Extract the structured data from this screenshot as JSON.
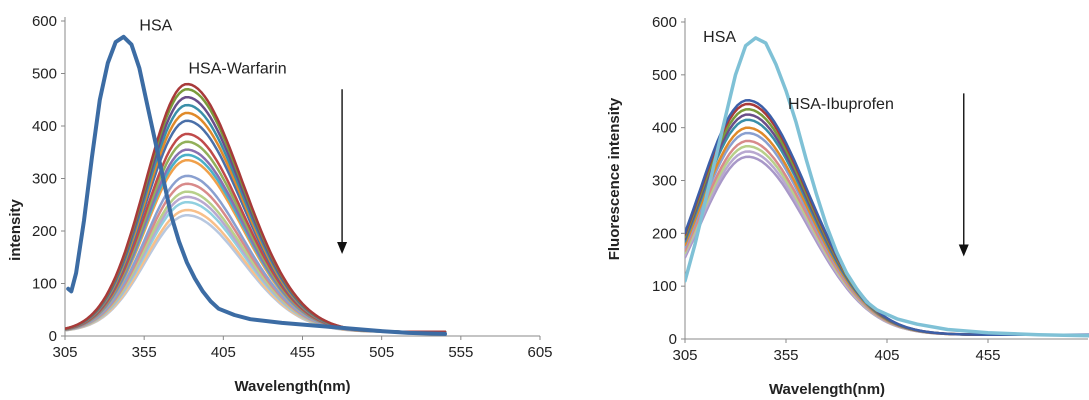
{
  "chart_data": [
    {
      "type": "line",
      "title": "",
      "xlabel": "Wavelength(nm)",
      "ylabel": "intensity",
      "xlim": [
        305,
        605
      ],
      "ylim": [
        0,
        600
      ],
      "x_ticks": [
        "305",
        "355",
        "405",
        "455",
        "505",
        "555",
        "605"
      ],
      "y_ticks": [
        "0",
        "100",
        "200",
        "300",
        "400",
        "500",
        "600"
      ],
      "grid": false,
      "annotations": [
        {
          "text": "HSA",
          "x": 352,
          "y": 582
        },
        {
          "text": "HSA-Warfarin",
          "x": 383,
          "y": 500
        }
      ],
      "arrow": {
        "x": 480,
        "y_from": 470,
        "y_to": 160
      },
      "series": [
        {
          "color": "#3C6CA4",
          "width": 4,
          "values": [
            [
              307,
              90
            ],
            [
              309,
              85
            ],
            [
              312,
              120
            ],
            [
              317,
              220
            ],
            [
              322,
              340
            ],
            [
              327,
              450
            ],
            [
              332,
              520
            ],
            [
              337,
              560
            ],
            [
              342,
              570
            ],
            [
              347,
              555
            ],
            [
              352,
              510
            ],
            [
              357,
              440
            ],
            [
              362,
              370
            ],
            [
              367,
              300
            ],
            [
              372,
              230
            ],
            [
              377,
              180
            ],
            [
              382,
              140
            ],
            [
              387,
              110
            ],
            [
              392,
              85
            ],
            [
              397,
              66
            ],
            [
              402,
              52
            ],
            [
              412,
              40
            ],
            [
              422,
              32
            ],
            [
              442,
              25
            ],
            [
              462,
              20
            ],
            [
              482,
              15
            ],
            [
              502,
              10
            ],
            [
              522,
              6
            ],
            [
              545,
              4
            ]
          ]
        },
        {
          "color": "#A83A3A",
          "peak": 480,
          "width": 2.5
        },
        {
          "color": "#7A9A3A",
          "peak": 470,
          "width": 2.5
        },
        {
          "color": "#6A4E8A",
          "peak": 455,
          "width": 2.5
        },
        {
          "color": "#3A8FA8",
          "peak": 440,
          "width": 2.5
        },
        {
          "color": "#E08A2A",
          "peak": 425,
          "width": 2.5
        },
        {
          "color": "#4A6FA8",
          "peak": 410,
          "width": 2.5
        },
        {
          "color": "#C04A4A",
          "peak": 385,
          "width": 2.5
        },
        {
          "color": "#92B05A",
          "peak": 370,
          "width": 2.5
        },
        {
          "color": "#8A70B0",
          "peak": 355,
          "width": 2.5
        },
        {
          "color": "#4AB0C8",
          "peak": 345,
          "width": 2.5
        },
        {
          "color": "#F0A04A",
          "peak": 335,
          "width": 2.5
        },
        {
          "color": "#8AA0D0",
          "peak": 305,
          "width": 2.5
        },
        {
          "color": "#D88A8A",
          "peak": 290,
          "width": 2.5
        },
        {
          "color": "#B8D08A",
          "peak": 275,
          "width": 2.5
        },
        {
          "color": "#B8A8D0",
          "peak": 265,
          "width": 2.5
        },
        {
          "color": "#90D0E0",
          "peak": 255,
          "width": 2.5
        },
        {
          "color": "#F8C08A",
          "peak": 240,
          "width": 2.5
        },
        {
          "color": "#B8C8E0",
          "peak": 230,
          "width": 2.5
        }
      ]
    },
    {
      "type": "line",
      "title": "",
      "xlabel": "Wavelength(nm)",
      "ylabel": "Fluorescence intensity",
      "xlim": [
        305,
        505
      ],
      "ylim": [
        0,
        600
      ],
      "x_ticks": [
        "305",
        "355",
        "405",
        "455"
      ],
      "y_ticks": [
        "0",
        "100",
        "200",
        "300",
        "400",
        "500",
        "600"
      ],
      "grid": false,
      "annotations": [
        {
          "text": "HSA",
          "x": 314,
          "y": 562
        },
        {
          "text": "HSA-Ibuprofen",
          "x": 356,
          "y": 435
        }
      ],
      "arrow": {
        "x": 443,
        "y_from": 465,
        "y_to": 160
      },
      "series": [
        {
          "color": "#7FC1D6",
          "width": 3.5,
          "values": [
            [
              305,
              110
            ],
            [
              310,
              180
            ],
            [
              315,
              260
            ],
            [
              320,
              340
            ],
            [
              325,
              420
            ],
            [
              330,
              500
            ],
            [
              335,
              555
            ],
            [
              340,
              570
            ],
            [
              345,
              560
            ],
            [
              350,
              520
            ],
            [
              355,
              470
            ],
            [
              360,
              410
            ],
            [
              365,
              340
            ],
            [
              370,
              275
            ],
            [
              375,
              215
            ],
            [
              380,
              165
            ],
            [
              385,
              125
            ],
            [
              390,
              95
            ],
            [
              395,
              70
            ],
            [
              400,
              55
            ],
            [
              410,
              38
            ],
            [
              420,
              28
            ],
            [
              435,
              18
            ],
            [
              455,
              12
            ],
            [
              480,
              8
            ],
            [
              505,
              6
            ]
          ]
        },
        {
          "color": "#3C5FA8",
          "peak": 452,
          "width": 2.5
        },
        {
          "color": "#A83A3A",
          "peak": 445,
          "width": 2.5
        },
        {
          "color": "#7A9A3A",
          "peak": 435,
          "width": 2.5
        },
        {
          "color": "#6A4E8A",
          "peak": 425,
          "width": 2.5
        },
        {
          "color": "#3A8FA8",
          "peak": 415,
          "width": 2.5
        },
        {
          "color": "#E08A2A",
          "peak": 400,
          "width": 2.5
        },
        {
          "color": "#8AA0D0",
          "peak": 390,
          "width": 2.5
        },
        {
          "color": "#D88A8A",
          "peak": 375,
          "width": 2.5
        },
        {
          "color": "#B8D08A",
          "peak": 365,
          "width": 2.5
        },
        {
          "color": "#B8A8D0",
          "peak": 355,
          "width": 2.5
        },
        {
          "color": "#A898C8",
          "peak": 345,
          "width": 2.5
        }
      ]
    }
  ]
}
